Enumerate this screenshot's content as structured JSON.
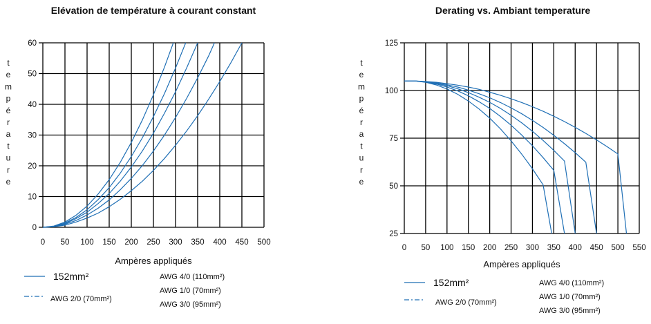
{
  "colors": {
    "curve": "#1f6fb5",
    "grid": "#000000",
    "text": "#111111"
  },
  "chart_data": [
    {
      "type": "line",
      "title": "Elévation de température à courant constant",
      "xlabel": "Ampères appliqués",
      "ylabel": "température",
      "ylabel_letters": [
        "t",
        "e",
        "m",
        "p",
        "é",
        "r",
        "a",
        "t",
        "u",
        "r",
        "e"
      ],
      "xlim": [
        0,
        500
      ],
      "ylim": [
        0,
        60
      ],
      "xticks": [
        "0",
        "50",
        "100",
        "150",
        "200",
        "250",
        "300",
        "350",
        "400",
        "450",
        "500"
      ],
      "yticks": [
        "0",
        "10",
        "20",
        "30",
        "40",
        "50",
        "60"
      ],
      "grid": true,
      "series": [
        {
          "x": [
            0,
            25,
            50,
            75,
            100,
            125,
            150,
            175,
            200,
            225,
            250,
            275,
            295
          ],
          "y": [
            0,
            0.4,
            1.7,
            3.9,
            6.9,
            10.8,
            15.5,
            21.1,
            27.6,
            34.9,
            43.1,
            52.1,
            60
          ]
        },
        {
          "x": [
            0,
            25,
            50,
            75,
            100,
            125,
            150,
            175,
            200,
            225,
            250,
            275,
            300,
            323
          ],
          "y": [
            0,
            0.3,
            1.4,
            3.2,
            5.7,
            9,
            12.9,
            17.6,
            23,
            29.1,
            36,
            43.5,
            51.8,
            60
          ]
        },
        {
          "x": [
            0,
            25,
            50,
            75,
            100,
            125,
            150,
            175,
            200,
            225,
            250,
            275,
            300,
            325,
            350
          ],
          "y": [
            0,
            0.3,
            1.2,
            2.8,
            4.9,
            7.7,
            11,
            15,
            19.6,
            24.8,
            30.6,
            37.1,
            44.1,
            51.8,
            60
          ]
        },
        {
          "x": [
            0,
            25,
            50,
            75,
            100,
            125,
            150,
            175,
            200,
            225,
            250,
            275,
            300,
            325,
            350,
            375,
            388
          ],
          "y": [
            0,
            0.2,
            1,
            2.2,
            4,
            6.2,
            8.9,
            12.2,
            15.9,
            20.1,
            24.8,
            30,
            35.7,
            41.9,
            48.6,
            55.8,
            60
          ]
        },
        {
          "x": [
            0,
            25,
            50,
            75,
            100,
            125,
            150,
            175,
            200,
            225,
            250,
            275,
            300,
            325,
            350,
            375,
            400,
            425,
            450
          ],
          "y": [
            0,
            0.2,
            0.7,
            1.7,
            3,
            4.6,
            6.7,
            9.1,
            11.9,
            15,
            18.5,
            22.4,
            26.7,
            31.3,
            36.3,
            41.7,
            47.4,
            53.5,
            60
          ]
        }
      ],
      "legend": {
        "left": [
          {
            "style": "solid",
            "label": "152mm²"
          },
          {
            "style": "dashdot",
            "label": "AWG 2/0 (70mm²)"
          }
        ],
        "right": [
          "AWG 4/0 (110mm²)",
          "AWG 1/0 (70mm²)",
          "AWG 3/0 (95mm²)"
        ]
      }
    },
    {
      "type": "line",
      "title": "Derating vs. Ambiant temperature",
      "xlabel": "Ampères appliqués",
      "ylabel": "température",
      "ylabel_letters": [
        "t",
        "e",
        "m",
        "p",
        "é",
        "r",
        "a",
        "t",
        "u",
        "r",
        "e"
      ],
      "xlim": [
        0,
        550
      ],
      "ylim": [
        25,
        125
      ],
      "xticks": [
        "0",
        "50",
        "100",
        "150",
        "200",
        "250",
        "300",
        "350",
        "400",
        "450",
        "500",
        "550"
      ],
      "yticks": [
        "25",
        "50",
        "75",
        "100",
        "125"
      ],
      "yticks_values": [
        25,
        50,
        75,
        100,
        125
      ],
      "grid": true,
      "series": [
        {
          "x": [
            0,
            25,
            50,
            75,
            100,
            125,
            150,
            175,
            200,
            225,
            250,
            275,
            300,
            325,
            345
          ],
          "y": [
            105,
            105,
            104.3,
            102.9,
            100.8,
            98,
            94.5,
            90.3,
            85.5,
            79.9,
            73.6,
            66.6,
            58.9,
            50.5,
            25
          ]
        },
        {
          "x": [
            0,
            25,
            50,
            75,
            100,
            125,
            150,
            175,
            200,
            225,
            250,
            275,
            300,
            325,
            350,
            375
          ],
          "y": [
            105,
            105,
            104.4,
            103.4,
            101.8,
            99.8,
            97.2,
            94.1,
            90.6,
            86.4,
            81.8,
            76.6,
            71,
            64.8,
            58.1,
            25
          ]
        },
        {
          "x": [
            0,
            25,
            50,
            75,
            100,
            125,
            150,
            175,
            200,
            225,
            250,
            275,
            300,
            325,
            350,
            375,
            400
          ],
          "y": [
            105,
            105,
            104.5,
            103.7,
            102.5,
            100.9,
            98.9,
            96.5,
            93.8,
            90.6,
            87,
            83,
            78.6,
            73.8,
            68.6,
            63,
            25
          ]
        },
        {
          "x": [
            0,
            25,
            50,
            75,
            100,
            125,
            150,
            175,
            200,
            225,
            250,
            275,
            300,
            325,
            350,
            375,
            400,
            425,
            450
          ],
          "y": [
            105,
            105,
            104.6,
            104,
            103,
            101.8,
            100.2,
            98.3,
            96.2,
            93.7,
            90.9,
            87.8,
            84.3,
            80.6,
            76.5,
            72.1,
            67.4,
            62.4,
            25
          ]
        },
        {
          "x": [
            0,
            25,
            50,
            75,
            100,
            125,
            150,
            175,
            200,
            225,
            250,
            275,
            300,
            325,
            350,
            375,
            400,
            425,
            450,
            475,
            500,
            520
          ],
          "y": [
            105,
            105,
            104.7,
            104.3,
            103.6,
            102.8,
            101.8,
            100.6,
            99.1,
            97.5,
            95.7,
            93.7,
            91.5,
            89.1,
            86.5,
            83.7,
            80.7,
            77.5,
            74.1,
            70.5,
            66.7,
            25
          ]
        }
      ],
      "legend": {
        "left": [
          {
            "style": "solid",
            "label": "152mm²"
          },
          {
            "style": "dashdot",
            "label": "AWG 2/0 (70mm²)"
          }
        ],
        "right": [
          "AWG 4/0 (110mm²)",
          "AWG 1/0 (70mm²)",
          "AWG 3/0 (95mm²)"
        ]
      }
    }
  ]
}
